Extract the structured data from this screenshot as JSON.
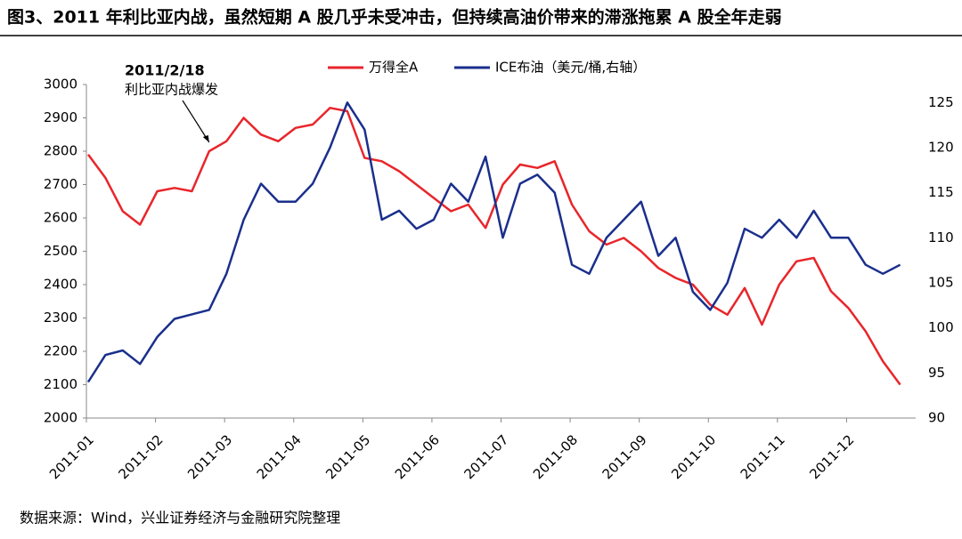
{
  "chart_data": {
    "type": "line",
    "title": "图3、2011 年利比亚内战，虽然短期 A 股几乎未受冲击，但持续高油价带来的滞涨拖累 A 股全年走弱",
    "source": "数据来源：Wind，兴业证券经济与金融研究院整理",
    "annotation": {
      "date": "2011/2/18",
      "text": "利比亚内战爆发",
      "index": 7
    },
    "categories": [
      "2011-01",
      null,
      null,
      null,
      "2011-02",
      null,
      null,
      null,
      "2011-03",
      null,
      null,
      null,
      "2011-04",
      null,
      null,
      null,
      "2011-05",
      null,
      null,
      null,
      "2011-06",
      null,
      null,
      null,
      "2011-07",
      null,
      null,
      null,
      "2011-08",
      null,
      null,
      null,
      "2011-09",
      null,
      null,
      null,
      "2011-10",
      null,
      null,
      null,
      "2011-11",
      null,
      null,
      null,
      "2011-12",
      null,
      null,
      null
    ],
    "series": [
      {
        "name": "万得全A",
        "color": "#e8262b",
        "axis": "y",
        "values": [
          2790,
          2720,
          2620,
          2580,
          2680,
          2690,
          2680,
          2800,
          2830,
          2900,
          2850,
          2830,
          2870,
          2880,
          2930,
          2920,
          2780,
          2770,
          2740,
          2700,
          2660,
          2620,
          2640,
          2570,
          2700,
          2760,
          2750,
          2770,
          2640,
          2560,
          2520,
          2540,
          2500,
          2450,
          2420,
          2400,
          2340,
          2310,
          2390,
          2280,
          2400,
          2470,
          2480,
          2380,
          2330,
          2260,
          2170,
          2100
        ]
      },
      {
        "name": "ICE布油（美元/桶,右轴）",
        "color": "#1a2f8c",
        "axis": "y2",
        "values": [
          94,
          97,
          97.5,
          96,
          99,
          101,
          101.5,
          102,
          106,
          112,
          116,
          114,
          114,
          116,
          120,
          125,
          122,
          112,
          113,
          111,
          112,
          116,
          114,
          119,
          110,
          116,
          117,
          115,
          107,
          106,
          110,
          112,
          114,
          108,
          110,
          104,
          102,
          105,
          111,
          110,
          112,
          110,
          113,
          110,
          110,
          107,
          106,
          107
        ]
      }
    ],
    "ylim": [
      2000,
      3000
    ],
    "yticks": [
      2000,
      2100,
      2200,
      2300,
      2400,
      2500,
      2600,
      2700,
      2800,
      2900,
      3000
    ],
    "y2lim": [
      90,
      127
    ],
    "y2ticks": [
      90,
      95,
      100,
      105,
      110,
      115,
      120,
      125
    ]
  }
}
